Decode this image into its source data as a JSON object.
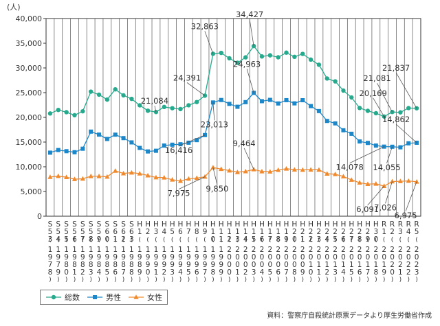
{
  "chart_data": {
    "type": "line",
    "ylabel": "(人)",
    "ylim": [
      0,
      40000
    ],
    "yticks": [
      "40,000",
      "35,000",
      "30,000",
      "25,000",
      "20,000",
      "15,000",
      "10,000",
      "5,000",
      "0"
    ],
    "grid": "vertical",
    "legend_position": "bottom-left",
    "categories": [
      {
        "era": "S53",
        "year": "1978"
      },
      {
        "era": "S54",
        "year": "1979"
      },
      {
        "era": "S55",
        "year": "1980"
      },
      {
        "era": "S56",
        "year": "1981"
      },
      {
        "era": "S57",
        "year": "1982"
      },
      {
        "era": "S58",
        "year": "1983"
      },
      {
        "era": "S59",
        "year": "1984"
      },
      {
        "era": "S60",
        "year": "1985"
      },
      {
        "era": "S61",
        "year": "1986"
      },
      {
        "era": "S62",
        "year": "1987"
      },
      {
        "era": "S63",
        "year": "1988"
      },
      {
        "era": "H1",
        "year": "1989"
      },
      {
        "era": "H2",
        "year": "1990"
      },
      {
        "era": "H3",
        "year": "1991"
      },
      {
        "era": "H4",
        "year": "1992"
      },
      {
        "era": "H5",
        "year": "1993"
      },
      {
        "era": "H6",
        "year": "1994"
      },
      {
        "era": "H7",
        "year": "1995"
      },
      {
        "era": "H8",
        "year": "1996"
      },
      {
        "era": "H9",
        "year": "1997"
      },
      {
        "era": "H10",
        "year": "1998"
      },
      {
        "era": "H11",
        "year": "1999"
      },
      {
        "era": "H12",
        "year": "2000"
      },
      {
        "era": "H13",
        "year": "2001"
      },
      {
        "era": "H14",
        "year": "2002"
      },
      {
        "era": "H15",
        "year": "2003"
      },
      {
        "era": "H16",
        "year": "2004"
      },
      {
        "era": "H17",
        "year": "2005"
      },
      {
        "era": "H18",
        "year": "2006"
      },
      {
        "era": "H19",
        "year": "2007"
      },
      {
        "era": "H20",
        "year": "2008"
      },
      {
        "era": "H21",
        "year": "2009"
      },
      {
        "era": "H22",
        "year": "2010"
      },
      {
        "era": "H23",
        "year": "2011"
      },
      {
        "era": "H24",
        "year": "2012"
      },
      {
        "era": "H25",
        "year": "2013"
      },
      {
        "era": "H26",
        "year": "2014"
      },
      {
        "era": "H27",
        "year": "2015"
      },
      {
        "era": "H28",
        "year": "2016"
      },
      {
        "era": "H29",
        "year": "2017"
      },
      {
        "era": "H30",
        "year": "2018"
      },
      {
        "era": "R1",
        "year": "2019"
      },
      {
        "era": "R2",
        "year": "2020"
      },
      {
        "era": "R3",
        "year": "2021"
      },
      {
        "era": "R4",
        "year": "2022"
      },
      {
        "era": "R5",
        "year": "2023"
      }
    ],
    "series": [
      {
        "name": "総数",
        "color": "#27a98d",
        "marker": "circle",
        "values": [
          20788,
          21503,
          21048,
          20434,
          21228,
          25202,
          24596,
          23599,
          25667,
          24460,
          23742,
          22436,
          21346,
          21084,
          22104,
          21851,
          21679,
          22445,
          23104,
          24391,
          32863,
          33048,
          31957,
          31042,
          32143,
          34427,
          32325,
          32552,
          32155,
          33093,
          32249,
          32845,
          31690,
          30651,
          27858,
          27283,
          25427,
          24025,
          21897,
          21321,
          20840,
          20169,
          21081,
          21007,
          21881,
          21837
        ]
      },
      {
        "name": "男性",
        "color": "#1b87c9",
        "marker": "square",
        "values": [
          12859,
          13386,
          13155,
          12942,
          13654,
          17116,
          16508,
          15624,
          16497,
          15802,
          14934,
          13818,
          13102,
          13243,
          14296,
          14468,
          14560,
          14874,
          15393,
          16416,
          23013,
          23512,
          22727,
          22144,
          23080,
          24963,
          23272,
          23540,
          22813,
          23478,
          22831,
          23472,
          22283,
          21270,
          19273,
          18787,
          17386,
          16681,
          15121,
          14826,
          14290,
          14078,
          14055,
          13939,
          14746,
          14862
        ]
      },
      {
        "name": "女性",
        "color": "#f08a2e",
        "marker": "triangle",
        "values": [
          7929,
          8117,
          7893,
          7492,
          7574,
          8086,
          8088,
          7975,
          9170,
          8658,
          8808,
          8618,
          8244,
          7841,
          7808,
          7383,
          7119,
          7571,
          7711,
          7975,
          9850,
          9536,
          9230,
          8898,
          9063,
          9464,
          9053,
          9012,
          9342,
          9615,
          9418,
          9373,
          9407,
          9381,
          8585,
          8496,
          8041,
          7344,
          6776,
          6495,
          6550,
          6091,
          7026,
          7068,
          7135,
          6975
        ]
      }
    ],
    "annotations": [
      {
        "series": 0,
        "index": 13,
        "text": "21,084"
      },
      {
        "series": 0,
        "index": 19,
        "text": "24,391"
      },
      {
        "series": 0,
        "index": 20,
        "text": "32,863"
      },
      {
        "series": 0,
        "index": 25,
        "text": "34,427"
      },
      {
        "series": 0,
        "index": 41,
        "text": "20,169"
      },
      {
        "series": 0,
        "index": 42,
        "text": "21,081"
      },
      {
        "series": 0,
        "index": 45,
        "text": "21,837"
      },
      {
        "series": 1,
        "index": 19,
        "text": "16,416"
      },
      {
        "series": 1,
        "index": 20,
        "text": "23,013"
      },
      {
        "series": 1,
        "index": 25,
        "text": "24,963"
      },
      {
        "series": 1,
        "index": 41,
        "text": "14,078"
      },
      {
        "series": 1,
        "index": 42,
        "text": "14,055"
      },
      {
        "series": 1,
        "index": 45,
        "text": "14,862"
      },
      {
        "series": 2,
        "index": 19,
        "text": "7,975"
      },
      {
        "series": 2,
        "index": 20,
        "text": "9,850"
      },
      {
        "series": 2,
        "index": 25,
        "text": "9,464"
      },
      {
        "series": 2,
        "index": 41,
        "text": "6,091"
      },
      {
        "series": 2,
        "index": 42,
        "text": "7,026"
      },
      {
        "series": 2,
        "index": 45,
        "text": "6,975"
      }
    ]
  },
  "source_note": "資料：警察庁自殺統計原票データより厚生労働省作成"
}
